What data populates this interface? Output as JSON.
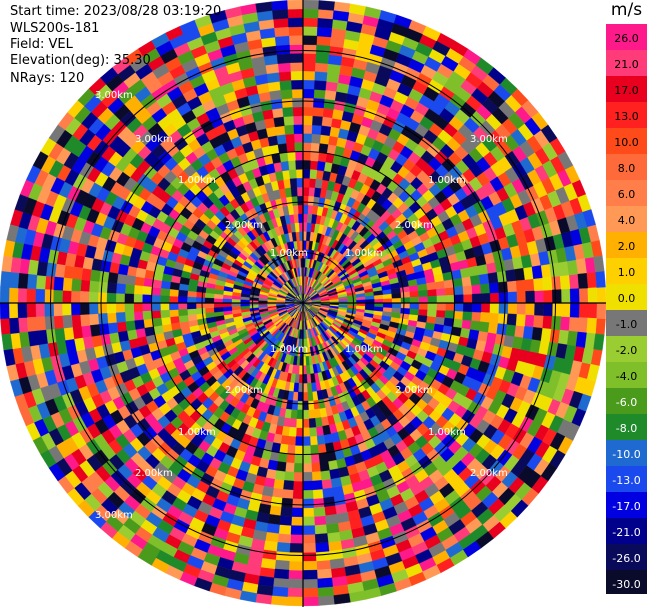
{
  "info": {
    "start_time": "Start time: 2023/08/28 03:19:20",
    "instrument": "WLS200s-181",
    "field": "Field: VEL",
    "elevation": "Elevation(deg): 35.30",
    "nrays": "NRays: 120"
  },
  "colorbar": {
    "unit": "m/s",
    "labels": [
      "26.0",
      "21.0",
      "17.0",
      "13.0",
      "10.0",
      "8.0",
      "6.0",
      "4.0",
      "2.0",
      "1.0",
      "0.0",
      "-1.0",
      "-2.0",
      "-4.0",
      "-6.0",
      "-8.0",
      "-10.0",
      "-13.0",
      "-17.0",
      "-21.0",
      "-26.0",
      "-30.0"
    ],
    "colors": [
      "#ff1a8c",
      "#ff3b7a",
      "#e8001e",
      "#ff2020",
      "#ff4a1a",
      "#ff6a3a",
      "#ff7e4a",
      "#ff9955",
      "#ffb000",
      "#ffd000",
      "#f0e000",
      "#777777",
      "#9acd32",
      "#7fbf2a",
      "#4a9a1c",
      "#1f8a2a",
      "#1e6ad0",
      "#1a4aee",
      "#0000e0",
      "#00008a",
      "#0a0a5a",
      "#0a0a2a"
    ]
  },
  "chart_data": {
    "type": "heatmap",
    "projection": "polar",
    "field": "VEL",
    "elevation_deg": 35.3,
    "n_rays": 120,
    "range_rings_km": [
      0.5,
      1.0,
      1.5,
      2.0,
      2.5,
      3.0
    ],
    "range_labels": [
      "1.00km",
      "1.00km",
      "1.00km",
      "1.00km",
      "2.00km",
      "2.00km",
      "2.00km",
      "2.00km",
      "1.00km",
      "1.00km",
      "1.00km",
      "1.00km",
      "2.00km",
      "2.00km",
      "3.00km",
      "3.00km",
      "3.00km",
      "3.00km"
    ],
    "colorbar_range": [
      -30.0,
      26.0
    ],
    "unit": "m/s"
  }
}
